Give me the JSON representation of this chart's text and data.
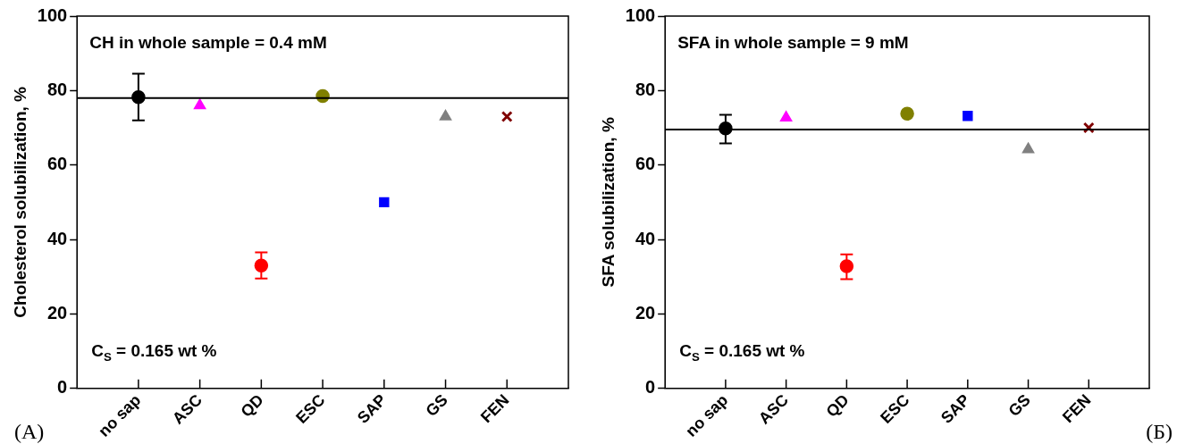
{
  "chart_data": [
    {
      "type": "scatter",
      "ylabel": "Cholesterol solubilization, %",
      "categories": [
        "no sap",
        "ASC",
        "QD",
        "ESC",
        "SAP",
        "GS",
        "FEN"
      ],
      "ylim": [
        0,
        100
      ],
      "yticks": [
        0,
        20,
        40,
        60,
        80,
        100
      ],
      "grid": false,
      "legend": false,
      "series": [
        {
          "color": "#000000",
          "marker": "circle",
          "values": [
            78.2,
            null,
            null,
            null,
            null,
            null,
            null
          ],
          "errors": [
            [
              72,
              84.5
            ],
            null,
            null,
            null,
            null,
            null,
            null
          ]
        },
        {
          "color": "#ff00ff",
          "marker": "triangle",
          "values": [
            null,
            76,
            null,
            null,
            null,
            null,
            null
          ]
        },
        {
          "color": "#ff0000",
          "marker": "circle",
          "values": [
            null,
            null,
            33,
            null,
            null,
            null,
            null
          ],
          "errors": [
            null,
            null,
            [
              29.5,
              36.5
            ],
            null,
            null,
            null,
            null
          ]
        },
        {
          "color": "#808000",
          "marker": "circle",
          "values": [
            null,
            null,
            null,
            78.5,
            null,
            null,
            null
          ]
        },
        {
          "color": "#0000ff",
          "marker": "square",
          "values": [
            null,
            null,
            null,
            null,
            50,
            null,
            null
          ]
        },
        {
          "color": "#808080",
          "marker": "triangle",
          "values": [
            null,
            null,
            null,
            null,
            null,
            73,
            null
          ]
        },
        {
          "color": "#800000",
          "marker": "cross",
          "values": [
            null,
            null,
            null,
            null,
            null,
            null,
            73
          ]
        }
      ],
      "ref_lines": [
        {
          "axis": "y",
          "value": 78,
          "color": "#000000"
        }
      ],
      "annotations": [
        "CH in whole sample = 0.4 mM",
        "C$_{S}$ = 0.165 wt %",
        "(A)"
      ]
    },
    {
      "type": "scatter",
      "ylabel": "SFA solubilization, %",
      "categories": [
        "no sap",
        "ASC",
        "QD",
        "ESC",
        "SAP",
        "GS",
        "FEN"
      ],
      "ylim": [
        0,
        100
      ],
      "yticks": [
        0,
        20,
        40,
        60,
        80,
        100
      ],
      "grid": false,
      "legend": false,
      "series": [
        {
          "color": "#000000",
          "marker": "circle",
          "values": [
            69.8,
            null,
            null,
            null,
            null,
            null,
            null
          ],
          "errors": [
            [
              65.8,
              73.5
            ],
            null,
            null,
            null,
            null,
            null,
            null
          ]
        },
        {
          "color": "#ff00ff",
          "marker": "triangle",
          "values": [
            null,
            72.7,
            null,
            null,
            null,
            null,
            null
          ]
        },
        {
          "color": "#ff0000",
          "marker": "circle",
          "values": [
            null,
            null,
            32.8,
            null,
            null,
            null,
            null
          ],
          "errors": [
            null,
            null,
            [
              29.3,
              36
            ],
            null,
            null,
            null,
            null
          ]
        },
        {
          "color": "#808000",
          "marker": "circle",
          "values": [
            null,
            null,
            null,
            73.8,
            null,
            null,
            null
          ]
        },
        {
          "color": "#0000ff",
          "marker": "square",
          "values": [
            null,
            null,
            null,
            null,
            73.2,
            null,
            null
          ]
        },
        {
          "color": "#808080",
          "marker": "triangle",
          "values": [
            null,
            null,
            null,
            null,
            null,
            64.2,
            null
          ]
        },
        {
          "color": "#800000",
          "marker": "cross",
          "values": [
            null,
            null,
            null,
            null,
            null,
            null,
            70
          ]
        }
      ],
      "ref_lines": [
        {
          "axis": "y",
          "value": 69.5,
          "color": "#000000"
        }
      ],
      "annotations": [
        "SFA in whole sample = 9 mM",
        "C$_{S}$ = 0.165 wt %",
        "(Б)"
      ]
    }
  ]
}
